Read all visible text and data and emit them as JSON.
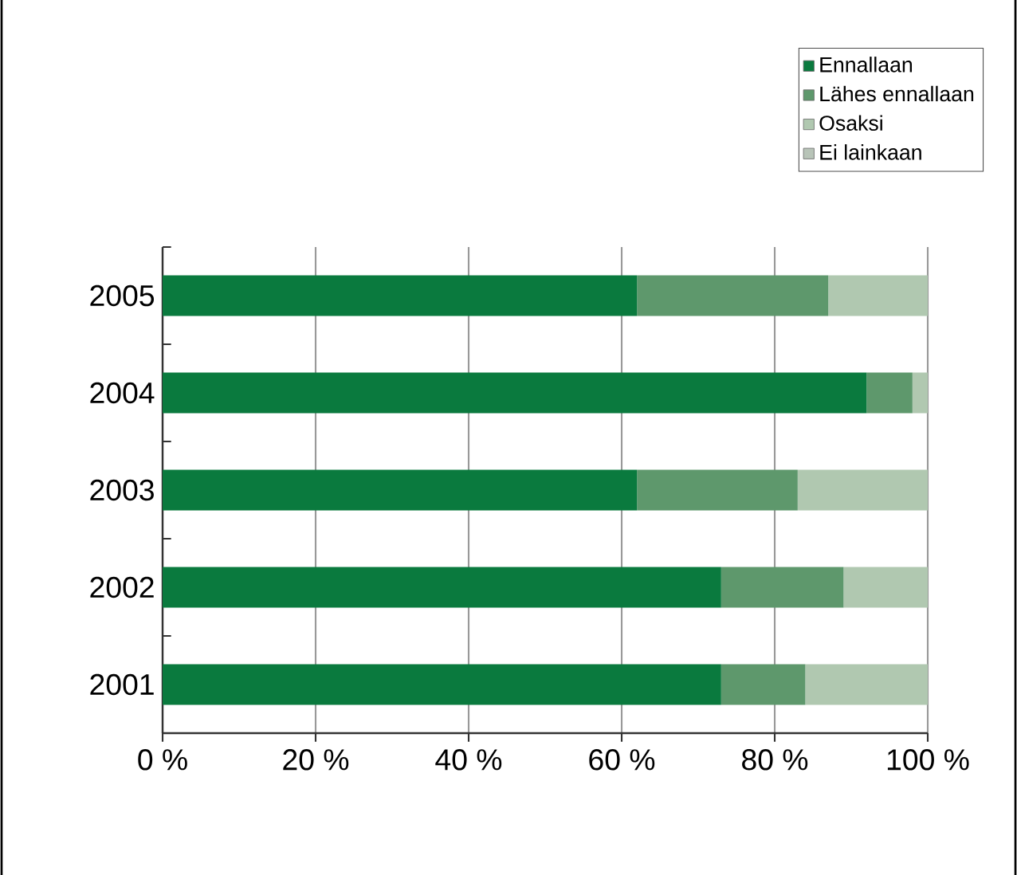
{
  "chart_data": {
    "type": "bar",
    "orientation": "horizontal",
    "stacked": true,
    "categories": [
      "2005",
      "2004",
      "2003",
      "2002",
      "2001"
    ],
    "series": [
      {
        "name": "Ennallaan",
        "color": "#0a7a3e",
        "values": [
          62,
          92,
          62,
          73,
          73
        ]
      },
      {
        "name": "Lähes ennallaan",
        "color": "#5e986c",
        "values": [
          25,
          6,
          21,
          16,
          11
        ]
      },
      {
        "name": "Osaksi",
        "color": "#b0c8b0",
        "values": [
          13,
          2,
          17,
          11,
          16
        ]
      },
      {
        "name": "Ei lainkaan",
        "color": "#b8c4b8",
        "values": [
          0,
          0,
          0,
          0,
          0
        ]
      }
    ],
    "xlim": [
      0,
      100
    ],
    "xticks": [
      {
        "value": 0,
        "label": "0 %"
      },
      {
        "value": 20,
        "label": "20 %"
      },
      {
        "value": 40,
        "label": "40 %"
      },
      {
        "value": 60,
        "label": "60 %"
      },
      {
        "value": 80,
        "label": "80 %"
      },
      {
        "value": 100,
        "label": "100 %"
      }
    ],
    "grid": "x",
    "legend": "top right"
  }
}
